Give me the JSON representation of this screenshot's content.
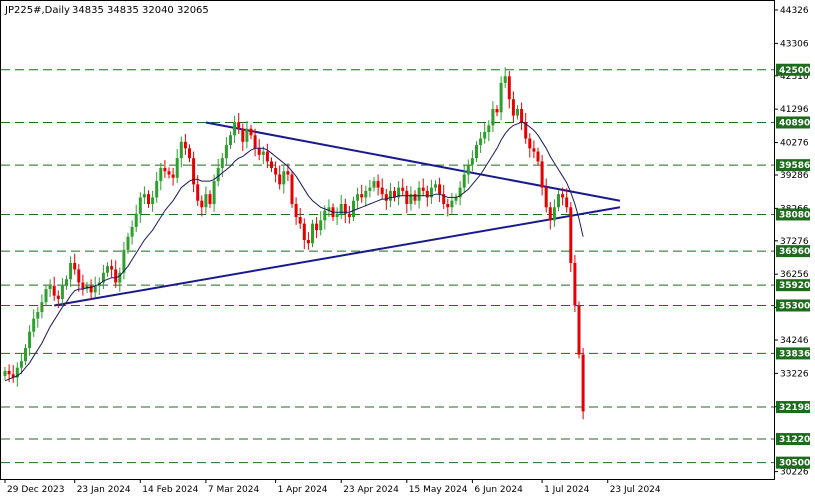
{
  "header": {
    "symbol": "JP225#,Daily",
    "ohlc": "34835 34835 32040 32065"
  },
  "colors": {
    "up": "#2e9e2e",
    "down": "#e60000",
    "level_line": "#1e6b1e",
    "level_box": "#1e6b1e",
    "trendline": "#1a1a8c",
    "ma": "#1a1a5e"
  },
  "chart_data": {
    "type": "candlestick",
    "ylim": [
      30000,
      44600
    ],
    "y_ticks": [
      44326,
      43306,
      42316,
      41296,
      40276,
      39286,
      38266,
      37276,
      36256,
      35236,
      34246,
      33226,
      32206,
      30226
    ],
    "x_tick_labels": [
      "29 Dec 2023",
      "23 Jan 2024",
      "14 Feb 2024",
      "7 Mar 2024",
      "1 Apr 2024",
      "23 Apr 2024",
      "15 May 2024",
      "6 Jun 2024",
      "1 Jul 2024",
      "23 Jul 2024"
    ],
    "levels": [
      42500,
      40890,
      39586,
      38080,
      36960,
      35920,
      35300,
      33836,
      32198,
      31220,
      30500
    ],
    "level_labels": [
      "42500",
      "40890",
      "39586",
      "38080",
      "36960",
      "35920",
      "35300",
      "33836",
      "32198",
      "31220",
      "30500"
    ],
    "trendlines": [
      {
        "from": [
          "2024-01-16",
          35300
        ],
        "to": [
          "2024-07-26",
          38300
        ]
      },
      {
        "from": [
          "2024-03-07",
          40890
        ],
        "to": [
          "2024-07-26",
          38500
        ]
      }
    ],
    "close": [
      33300,
      33200,
      33100,
      33400,
      33600,
      34000,
      34500,
      34900,
      35100,
      35400,
      35800,
      35900,
      35600,
      35500,
      35900,
      36100,
      36600,
      36400,
      36000,
      35800,
      35900,
      35700,
      35900,
      36000,
      36300,
      36500,
      36400,
      36000,
      36300,
      37000,
      37400,
      37700,
      38100,
      38600,
      38700,
      38400,
      38600,
      39100,
      39500,
      39400,
      39300,
      39200,
      39800,
      40300,
      40100,
      39800,
      39000,
      38500,
      38300,
      38700,
      38400,
      39100,
      39500,
      39800,
      40200,
      40500,
      40900,
      40700,
      40300,
      40700,
      40500,
      40100,
      39900,
      40000,
      39700,
      39500,
      39300,
      39000,
      39400,
      39300,
      38400,
      38000,
      37800,
      37300,
      37200,
      37800,
      37600,
      37900,
      38200,
      38300,
      38000,
      38100,
      38400,
      38100,
      38000,
      38500,
      38700,
      38600,
      38800,
      38900,
      39100,
      38900,
      38700,
      38500,
      38800,
      38600,
      38900,
      38800,
      38400,
      38700,
      38500,
      38900,
      38800,
      38600,
      38900,
      39000,
      38700,
      38400,
      38300,
      38500,
      38600,
      38900,
      39300,
      39600,
      39800,
      40200,
      40400,
      40600,
      40800,
      41300,
      41200,
      42100,
      42300,
      41600,
      41100,
      41300,
      40900,
      40400,
      40100,
      40000,
      39700,
      38900,
      38300,
      37900,
      38300,
      38700,
      38600,
      38300,
      36600,
      35300,
      33800,
      32065
    ],
    "ma": [
      33000,
      33050,
      33100,
      33150,
      33250,
      33400,
      33550,
      33750,
      33950,
      34150,
      34400,
      34650,
      34850,
      35050,
      35250,
      35400,
      35600,
      35750,
      35800,
      35800,
      35850,
      35850,
      35900,
      35950,
      36050,
      36100,
      36150,
      36150,
      36200,
      36350,
      36500,
      36700,
      36900,
      37100,
      37300,
      37450,
      37600,
      37800,
      38000,
      38200,
      38350,
      38500,
      38700,
      38900,
      39000,
      39100,
      39150,
      39150,
      39100,
      39100,
      39100,
      39150,
      39250,
      39350,
      39450,
      39550,
      39700,
      39800,
      39850,
      39950,
      40050,
      40100,
      40100,
      40100,
      40050,
      39950,
      39850,
      39750,
      39650,
      39550,
      39400,
      39250,
      39050,
      38850,
      38650,
      38500,
      38400,
      38300,
      38250,
      38200,
      38150,
      38150,
      38150,
      38150,
      38150,
      38200,
      38250,
      38300,
      38350,
      38400,
      38450,
      38500,
      38550,
      38550,
      38600,
      38600,
      38650,
      38650,
      38650,
      38650,
      38650,
      38650,
      38650,
      38650,
      38650,
      38700,
      38700,
      38650,
      38600,
      38600,
      38600,
      38650,
      38750,
      38850,
      39000,
      39150,
      39300,
      39500,
      39700,
      39900,
      40100,
      40350,
      40550,
      40700,
      40800,
      40850,
      40900,
      40850,
      40750,
      40650,
      40500,
      40300,
      40100,
      39850,
      39650,
      39450,
      39250,
      39050,
      38750,
      38400,
      37950,
      37400
    ]
  }
}
